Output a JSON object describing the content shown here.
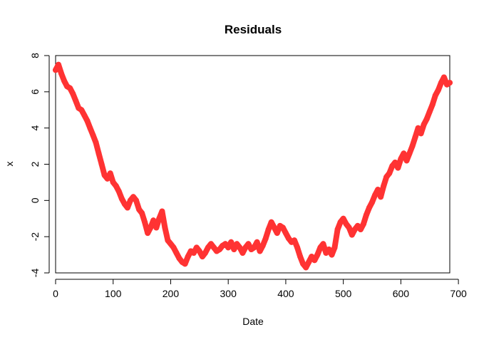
{
  "chart_data": {
    "type": "line",
    "title": "Residuals",
    "xlabel": "Date",
    "ylabel": "x",
    "xlim": [
      0,
      685
    ],
    "ylim": [
      -4,
      8
    ],
    "xticks": [
      0,
      100,
      200,
      300,
      400,
      500,
      600,
      700
    ],
    "yticks": [
      -4,
      -2,
      0,
      2,
      4,
      6,
      8
    ],
    "line_color": "#ff3333",
    "grid": false,
    "series": [
      {
        "x": [
          0,
          5,
          10,
          15,
          20,
          25,
          30,
          35,
          40,
          45,
          50,
          55,
          60,
          65,
          70,
          75,
          80,
          85,
          90,
          95,
          100,
          105,
          110,
          115,
          120,
          125,
          130,
          135,
          140,
          145,
          150,
          155,
          160,
          165,
          170,
          175,
          180,
          185,
          190,
          195,
          200,
          205,
          210,
          215,
          220,
          225,
          230,
          235,
          240,
          245,
          250,
          255,
          260,
          265,
          270,
          275,
          280,
          285,
          290,
          295,
          300,
          305,
          310,
          315,
          320,
          325,
          330,
          335,
          340,
          345,
          350,
          355,
          360,
          365,
          370,
          375,
          380,
          385,
          390,
          395,
          400,
          405,
          410,
          415,
          420,
          425,
          430,
          435,
          440,
          445,
          450,
          455,
          460,
          465,
          470,
          475,
          480,
          485,
          490,
          495,
          500,
          505,
          510,
          515,
          520,
          525,
          530,
          535,
          540,
          545,
          550,
          555,
          560,
          565,
          570,
          575,
          580,
          585,
          590,
          595,
          600,
          605,
          610,
          615,
          620,
          625,
          630,
          635,
          640,
          645,
          650,
          655,
          660,
          665,
          670,
          675,
          680,
          685
        ],
        "values": [
          7.2,
          7.5,
          7.0,
          6.6,
          6.3,
          6.2,
          5.9,
          5.5,
          5.1,
          5.0,
          4.7,
          4.4,
          4.0,
          3.6,
          3.2,
          2.6,
          2.0,
          1.4,
          1.2,
          1.5,
          1.0,
          0.8,
          0.5,
          0.1,
          -0.2,
          -0.4,
          0.0,
          0.2,
          0.0,
          -0.5,
          -0.7,
          -1.2,
          -1.8,
          -1.5,
          -1.1,
          -1.5,
          -1.0,
          -0.6,
          -1.5,
          -2.2,
          -2.4,
          -2.6,
          -2.9,
          -3.2,
          -3.4,
          -3.5,
          -3.1,
          -2.8,
          -2.9,
          -2.6,
          -2.8,
          -3.1,
          -2.9,
          -2.6,
          -2.4,
          -2.6,
          -2.8,
          -2.7,
          -2.5,
          -2.4,
          -2.6,
          -2.3,
          -2.7,
          -2.4,
          -2.6,
          -2.9,
          -2.6,
          -2.4,
          -2.7,
          -2.6,
          -2.3,
          -2.8,
          -2.5,
          -2.1,
          -1.6,
          -1.2,
          -1.5,
          -1.8,
          -1.4,
          -1.5,
          -1.8,
          -2.1,
          -2.3,
          -2.2,
          -2.6,
          -3.1,
          -3.5,
          -3.7,
          -3.4,
          -3.1,
          -3.3,
          -3.0,
          -2.6,
          -2.4,
          -2.9,
          -2.7,
          -3.0,
          -2.6,
          -1.6,
          -1.2,
          -1.0,
          -1.3,
          -1.5,
          -1.9,
          -1.6,
          -1.4,
          -1.6,
          -1.3,
          -0.8,
          -0.4,
          -0.1,
          0.3,
          0.6,
          0.2,
          0.8,
          1.3,
          1.5,
          1.9,
          2.1,
          1.8,
          2.3,
          2.6,
          2.2,
          2.6,
          3.0,
          3.5,
          4.0,
          3.7,
          4.2,
          4.5,
          4.9,
          5.3,
          5.8,
          6.1,
          6.5,
          6.8,
          6.4,
          6.5
        ]
      }
    ]
  }
}
